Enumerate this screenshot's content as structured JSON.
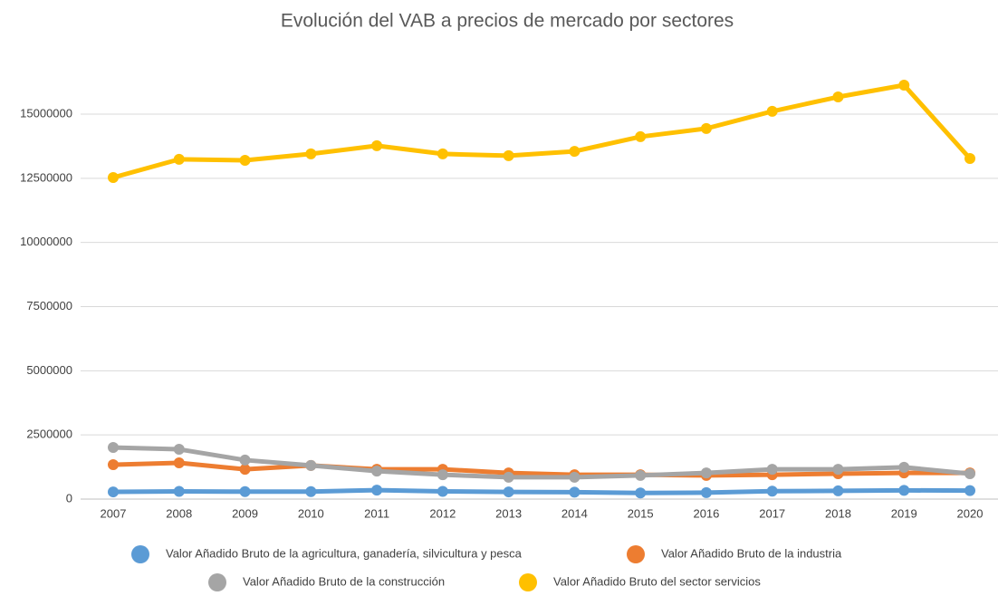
{
  "chart_data": {
    "type": "line",
    "title": "Evolución del VAB a precios de mercado por sectores",
    "categories": [
      "2007",
      "2008",
      "2009",
      "2010",
      "2011",
      "2012",
      "2013",
      "2014",
      "2015",
      "2016",
      "2017",
      "2018",
      "2019",
      "2020"
    ],
    "series": [
      {
        "name": "Valor Añadido Bruto de la agricultura, ganadería, silvicultura y pesca",
        "color": "#5b9bd5",
        "values": [
          280000,
          300000,
          290000,
          290000,
          350000,
          300000,
          280000,
          270000,
          240000,
          250000,
          310000,
          320000,
          340000,
          330000
        ]
      },
      {
        "name": "Valor Añadido Bruto de la industria",
        "color": "#ed7d31",
        "values": [
          1340000,
          1410000,
          1160000,
          1310000,
          1160000,
          1160000,
          1020000,
          950000,
          950000,
          920000,
          950000,
          990000,
          1020000,
          1020000
        ]
      },
      {
        "name": "Valor Añadido Bruto de la construcción",
        "color": "#a5a5a5",
        "values": [
          2010000,
          1940000,
          1520000,
          1310000,
          1090000,
          950000,
          850000,
          850000,
          920000,
          1020000,
          1160000,
          1160000,
          1240000,
          990000
        ]
      },
      {
        "name": "Valor Añadido Bruto del sector servicios",
        "color": "#ffc000",
        "values": [
          12530000,
          13240000,
          13200000,
          13450000,
          13770000,
          13450000,
          13380000,
          13550000,
          14120000,
          14440000,
          15110000,
          15670000,
          16130000,
          13270000
        ]
      }
    ],
    "ylim": [
      0,
      17500000
    ],
    "yticks": [
      0,
      2500000,
      5000000,
      7500000,
      10000000,
      12500000,
      15000000
    ],
    "grid": true,
    "legend": "bottom"
  }
}
